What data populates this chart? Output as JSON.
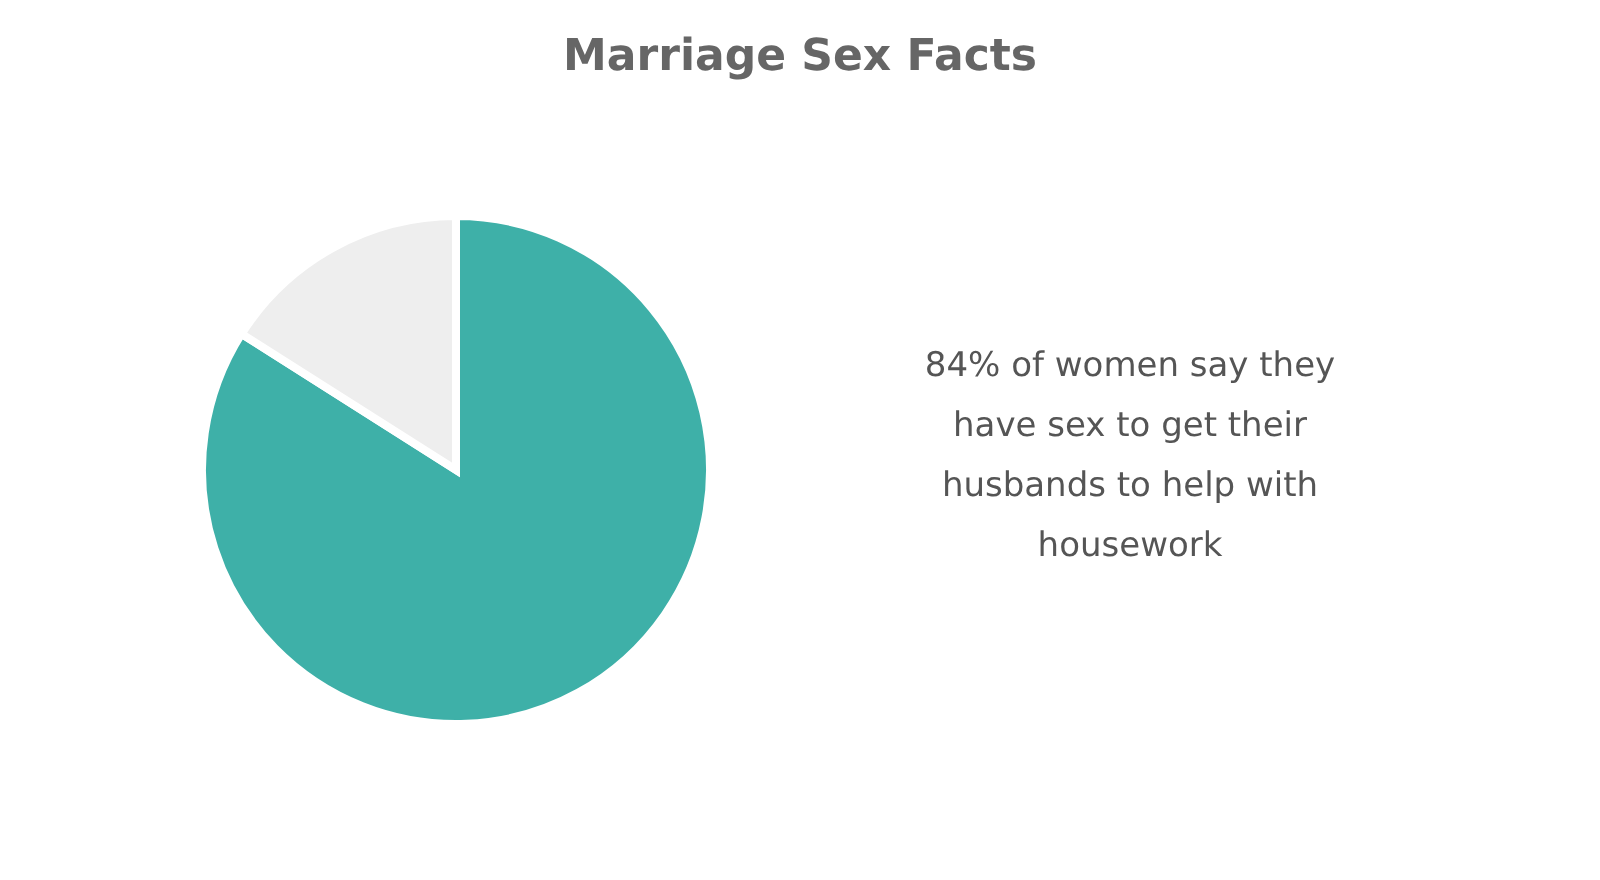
{
  "chart_data": {
    "type": "pie",
    "title": "Marriage Sex Facts",
    "categories": [
      null,
      null
    ],
    "values": [
      84,
      16
    ],
    "colors": [
      "#3eb0a8",
      "#eeeeee"
    ],
    "annotations": [
      "84% of women say they have sex to get their husbands to help with housework"
    ],
    "legend": false
  }
}
